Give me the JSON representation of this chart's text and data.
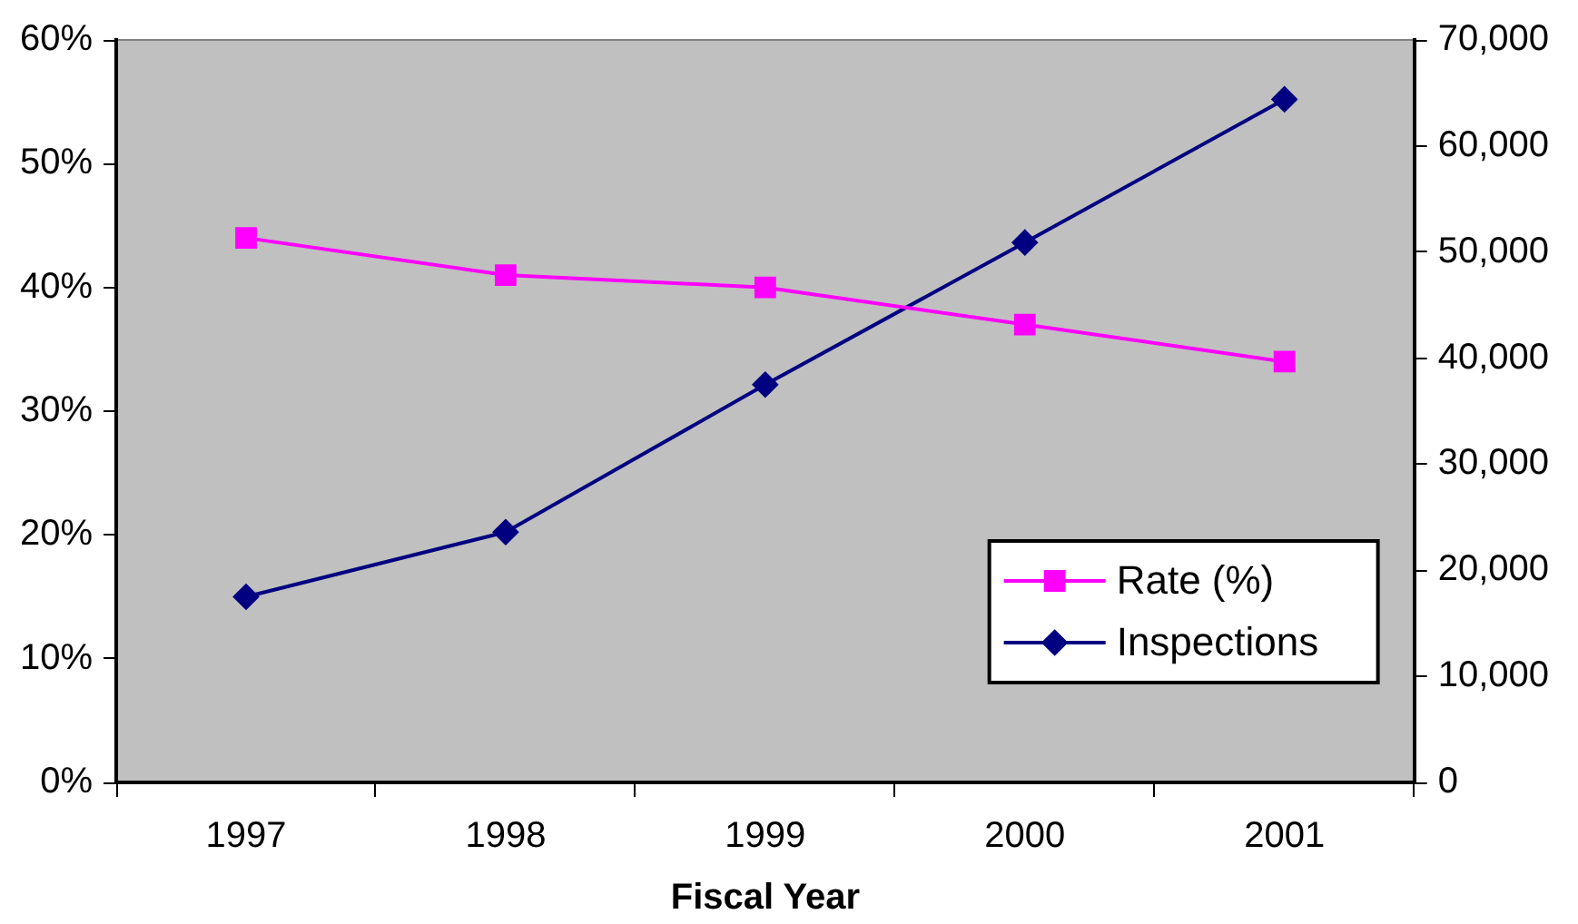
{
  "chart_data": {
    "type": "line",
    "xlabel": "Fiscal Year",
    "categories": [
      "1997",
      "1998",
      "1999",
      "2000",
      "2001"
    ],
    "series": [
      {
        "name": "Rate (%)",
        "color": "#ff00ff",
        "marker": "square",
        "values": [
          44,
          41,
          40,
          37,
          34
        ]
      },
      {
        "name": "Inspections",
        "color": "#000080",
        "marker": "diamond",
        "axis": "y2",
        "values": [
          17500,
          23600,
          37500,
          50900,
          64400
        ]
      }
    ],
    "ylim": [
      0,
      60
    ],
    "yticks": [
      {
        "value": 0,
        "label": "0%"
      },
      {
        "value": 10,
        "label": "10%"
      },
      {
        "value": 20,
        "label": "20%"
      },
      {
        "value": 30,
        "label": "30%"
      },
      {
        "value": 40,
        "label": "40%"
      },
      {
        "value": 50,
        "label": "50%"
      },
      {
        "value": 60,
        "label": "60%"
      }
    ],
    "y2lim": [
      0,
      70000
    ],
    "y2ticks": [
      0,
      {
        "value": 10000,
        "label": "10,000"
      },
      {
        "value": 20000,
        "label": "20,000"
      },
      {
        "value": 30000,
        "label": "30,000"
      },
      {
        "value": 40000,
        "label": "40,000"
      },
      {
        "value": 50000,
        "label": "50,000"
      },
      {
        "value": 60000,
        "label": "60,000"
      },
      {
        "value": 70000,
        "label": "70,000"
      }
    ],
    "grid": false,
    "legend": "bottom right"
  }
}
